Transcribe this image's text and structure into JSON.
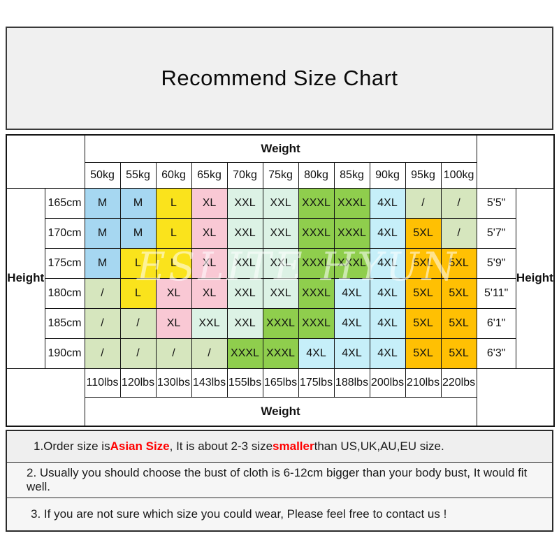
{
  "title": "Recommend Size Chart",
  "watermark": "ESLITE HYUN",
  "colors": {
    "blue": "#A6D7F1",
    "yellow": "#FAE31C",
    "pink": "#F9C8D4",
    "mint": "#DCF2E5",
    "green": "#8FCE4D",
    "cyan": "#C6EFF9",
    "orange": "#FFC003",
    "pale": "#D6E6BE",
    "note_accent": "#FF0000"
  },
  "table": {
    "weight_label_top": "Weight",
    "weight_label_bottom": "Weight",
    "height_label_left": "Height",
    "height_label_right": "Height",
    "kg_columns": [
      "50kg",
      "55kg",
      "60kg",
      "65kg",
      "70kg",
      "75kg",
      "80kg",
      "85kg",
      "90kg",
      "95kg",
      "100kg"
    ],
    "lbs_columns": [
      "110lbs",
      "120lbs",
      "130lbs",
      "143lbs",
      "155lbs",
      "165lbs",
      "175lbs",
      "188lbs",
      "200lbs",
      "210lbs",
      "220lbs"
    ],
    "rows": [
      {
        "cm": "165cm",
        "ft": "5'5\"",
        "cells": [
          {
            "v": "M",
            "c": "blue"
          },
          {
            "v": "M",
            "c": "blue"
          },
          {
            "v": "L",
            "c": "yellow"
          },
          {
            "v": "XL",
            "c": "pink"
          },
          {
            "v": "XXL",
            "c": "mint"
          },
          {
            "v": "XXL",
            "c": "mint"
          },
          {
            "v": "XXXL",
            "c": "green"
          },
          {
            "v": "XXXL",
            "c": "green"
          },
          {
            "v": "4XL",
            "c": "cyan"
          },
          {
            "v": "/",
            "c": "pale"
          },
          {
            "v": "/",
            "c": "pale"
          }
        ]
      },
      {
        "cm": "170cm",
        "ft": "5'7\"",
        "cells": [
          {
            "v": "M",
            "c": "blue"
          },
          {
            "v": "M",
            "c": "blue"
          },
          {
            "v": "L",
            "c": "yellow"
          },
          {
            "v": "XL",
            "c": "pink"
          },
          {
            "v": "XXL",
            "c": "mint"
          },
          {
            "v": "XXL",
            "c": "mint"
          },
          {
            "v": "XXXL",
            "c": "green"
          },
          {
            "v": "XXXL",
            "c": "green"
          },
          {
            "v": "4XL",
            "c": "cyan"
          },
          {
            "v": "5XL",
            "c": "orange"
          },
          {
            "v": "/",
            "c": "pale"
          }
        ]
      },
      {
        "cm": "175cm",
        "ft": "5'9\"",
        "cells": [
          {
            "v": "M",
            "c": "blue"
          },
          {
            "v": "L",
            "c": "yellow"
          },
          {
            "v": "L",
            "c": "yellow"
          },
          {
            "v": "XL",
            "c": "pink"
          },
          {
            "v": "XXL",
            "c": "mint"
          },
          {
            "v": "XXL",
            "c": "mint"
          },
          {
            "v": "XXXL",
            "c": "green"
          },
          {
            "v": "XXXL",
            "c": "green"
          },
          {
            "v": "4XL",
            "c": "cyan"
          },
          {
            "v": "5XL",
            "c": "orange"
          },
          {
            "v": "5XL",
            "c": "orange"
          }
        ]
      },
      {
        "cm": "180cm",
        "ft": "5'11\"",
        "cells": [
          {
            "v": "/",
            "c": "pale"
          },
          {
            "v": "L",
            "c": "yellow"
          },
          {
            "v": "XL",
            "c": "pink"
          },
          {
            "v": "XL",
            "c": "pink"
          },
          {
            "v": "XXL",
            "c": "mint"
          },
          {
            "v": "XXL",
            "c": "mint"
          },
          {
            "v": "XXXL",
            "c": "green"
          },
          {
            "v": "4XL",
            "c": "cyan"
          },
          {
            "v": "4XL",
            "c": "cyan"
          },
          {
            "v": "5XL",
            "c": "orange"
          },
          {
            "v": "5XL",
            "c": "orange"
          }
        ]
      },
      {
        "cm": "185cm",
        "ft": "6'1\"",
        "cells": [
          {
            "v": "/",
            "c": "pale"
          },
          {
            "v": "/",
            "c": "pale"
          },
          {
            "v": "XL",
            "c": "pink"
          },
          {
            "v": "XXL",
            "c": "mint"
          },
          {
            "v": "XXL",
            "c": "mint"
          },
          {
            "v": "XXXL",
            "c": "green"
          },
          {
            "v": "XXXL",
            "c": "green"
          },
          {
            "v": "4XL",
            "c": "cyan"
          },
          {
            "v": "4XL",
            "c": "cyan"
          },
          {
            "v": "5XL",
            "c": "orange"
          },
          {
            "v": "5XL",
            "c": "orange"
          }
        ]
      },
      {
        "cm": "190cm",
        "ft": "6'3\"",
        "cells": [
          {
            "v": "/",
            "c": "pale"
          },
          {
            "v": "/",
            "c": "pale"
          },
          {
            "v": "/",
            "c": "pale"
          },
          {
            "v": "/",
            "c": "pale"
          },
          {
            "v": "XXXL",
            "c": "green"
          },
          {
            "v": "XXXL",
            "c": "green"
          },
          {
            "v": "4XL",
            "c": "cyan"
          },
          {
            "v": "4XL",
            "c": "cyan"
          },
          {
            "v": "4XL",
            "c": "cyan"
          },
          {
            "v": "5XL",
            "c": "orange"
          },
          {
            "v": "5XL",
            "c": "orange"
          }
        ]
      }
    ]
  },
  "notes": [
    {
      "segments": [
        {
          "text": "1.Order size is ",
          "em": false
        },
        {
          "text": "Asian Size",
          "em": true
        },
        {
          "text": ", It is about 2-3 size ",
          "em": false
        },
        {
          "text": "smaller",
          "em": true
        },
        {
          "text": " than US,UK,AU,EU size.",
          "em": false
        }
      ]
    },
    {
      "segments": [
        {
          "text": "2. Usually you should choose the bust of cloth is 6-12cm bigger than your body bust, It would fit well.",
          "em": false
        }
      ]
    },
    {
      "segments": [
        {
          "text": "3. If you are not sure which size you could wear, Please feel free to contact us !",
          "em": false
        }
      ]
    }
  ]
}
